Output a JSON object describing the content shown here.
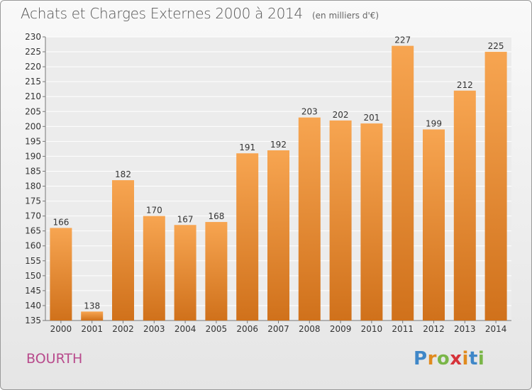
{
  "header": {
    "title": "Achats et Charges Externes 2000 à 2014",
    "unit": "(en milliers d'€)"
  },
  "footer": {
    "place": "BOURTH",
    "logo": [
      "P",
      "r",
      "o",
      "x",
      "i",
      "t",
      "i"
    ]
  },
  "colors": {
    "bar_top": "#f7a551",
    "bar_bottom": "#d0711b",
    "title": "#555555",
    "place": "#b84a8c"
  },
  "chart_data": {
    "type": "bar",
    "title": "Achats et Charges Externes 2000 à 2014",
    "subtitle": "(en milliers d'€)",
    "categories": [
      "2000",
      "2001",
      "2002",
      "2003",
      "2004",
      "2005",
      "2006",
      "2007",
      "2008",
      "2009",
      "2010",
      "2011",
      "2012",
      "2013",
      "2014"
    ],
    "values": [
      166,
      138,
      182,
      170,
      167,
      168,
      191,
      192,
      203,
      202,
      201,
      227,
      199,
      212,
      225
    ],
    "ylim": [
      135,
      230
    ],
    "yticks": [
      135,
      140,
      145,
      150,
      155,
      160,
      165,
      170,
      175,
      180,
      185,
      190,
      195,
      200,
      205,
      210,
      215,
      220,
      225,
      230
    ],
    "grid": true,
    "legend": "none"
  }
}
